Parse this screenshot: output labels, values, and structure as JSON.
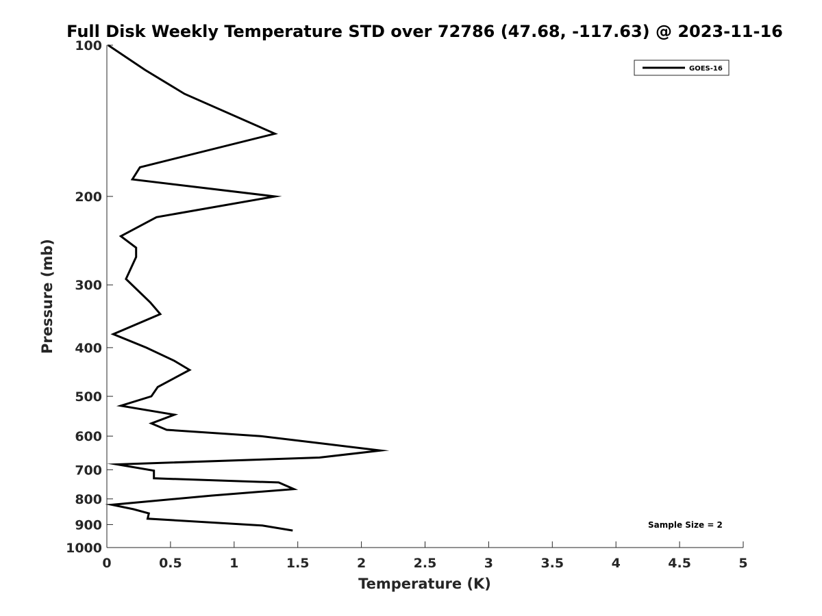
{
  "chart_data": {
    "type": "line",
    "title": "Full Disk Weekly Temperature STD over 72786 (47.68, -117.63) @ 2023-11-16",
    "xlabel": "Temperature (K)",
    "ylabel": "Pressure (mb)",
    "xlim": [
      0,
      5
    ],
    "ylim": [
      100,
      1000
    ],
    "y_scale": "log",
    "y_reversed": true,
    "x_ticks": [
      "0",
      "0.5",
      "1",
      "1.5",
      "2",
      "2.5",
      "3",
      "3.5",
      "4",
      "4.5",
      "5"
    ],
    "y_ticks": [
      "100",
      "200",
      "300",
      "400",
      "500",
      "600",
      "700",
      "800",
      "900",
      "1000"
    ],
    "grid": false,
    "legend_position": "top-right",
    "annotation": "Sample Size = 2",
    "line_color": "#000000",
    "series": [
      {
        "name": "GOES-16",
        "points": [
          [
            0.01,
            100
          ],
          [
            0.3,
            112
          ],
          [
            0.61,
            125
          ],
          [
            1.32,
            150
          ],
          [
            0.26,
            175
          ],
          [
            0.2,
            185
          ],
          [
            1.32,
            200
          ],
          [
            0.39,
            220
          ],
          [
            0.11,
            240
          ],
          [
            0.23,
            253
          ],
          [
            0.23,
            264
          ],
          [
            0.15,
            292
          ],
          [
            0.34,
            325
          ],
          [
            0.42,
            343
          ],
          [
            0.05,
            376
          ],
          [
            0.31,
            400
          ],
          [
            0.53,
            425
          ],
          [
            0.65,
            443
          ],
          [
            0.4,
            479
          ],
          [
            0.35,
            500
          ],
          [
            0.11,
            522
          ],
          [
            0.53,
            544
          ],
          [
            0.35,
            566
          ],
          [
            0.47,
            583
          ],
          [
            1.21,
            600
          ],
          [
            1.7,
            621
          ],
          [
            2.15,
            641
          ],
          [
            1.67,
            662
          ],
          [
            0.08,
            683
          ],
          [
            0.37,
            703
          ],
          [
            0.37,
            728
          ],
          [
            1.35,
            742
          ],
          [
            1.47,
            765
          ],
          [
            0.82,
            788
          ],
          [
            0.04,
            822
          ],
          [
            0.21,
            839
          ],
          [
            0.33,
            855
          ],
          [
            0.32,
            876
          ],
          [
            1.22,
            904
          ],
          [
            1.46,
            925
          ]
        ]
      }
    ]
  }
}
